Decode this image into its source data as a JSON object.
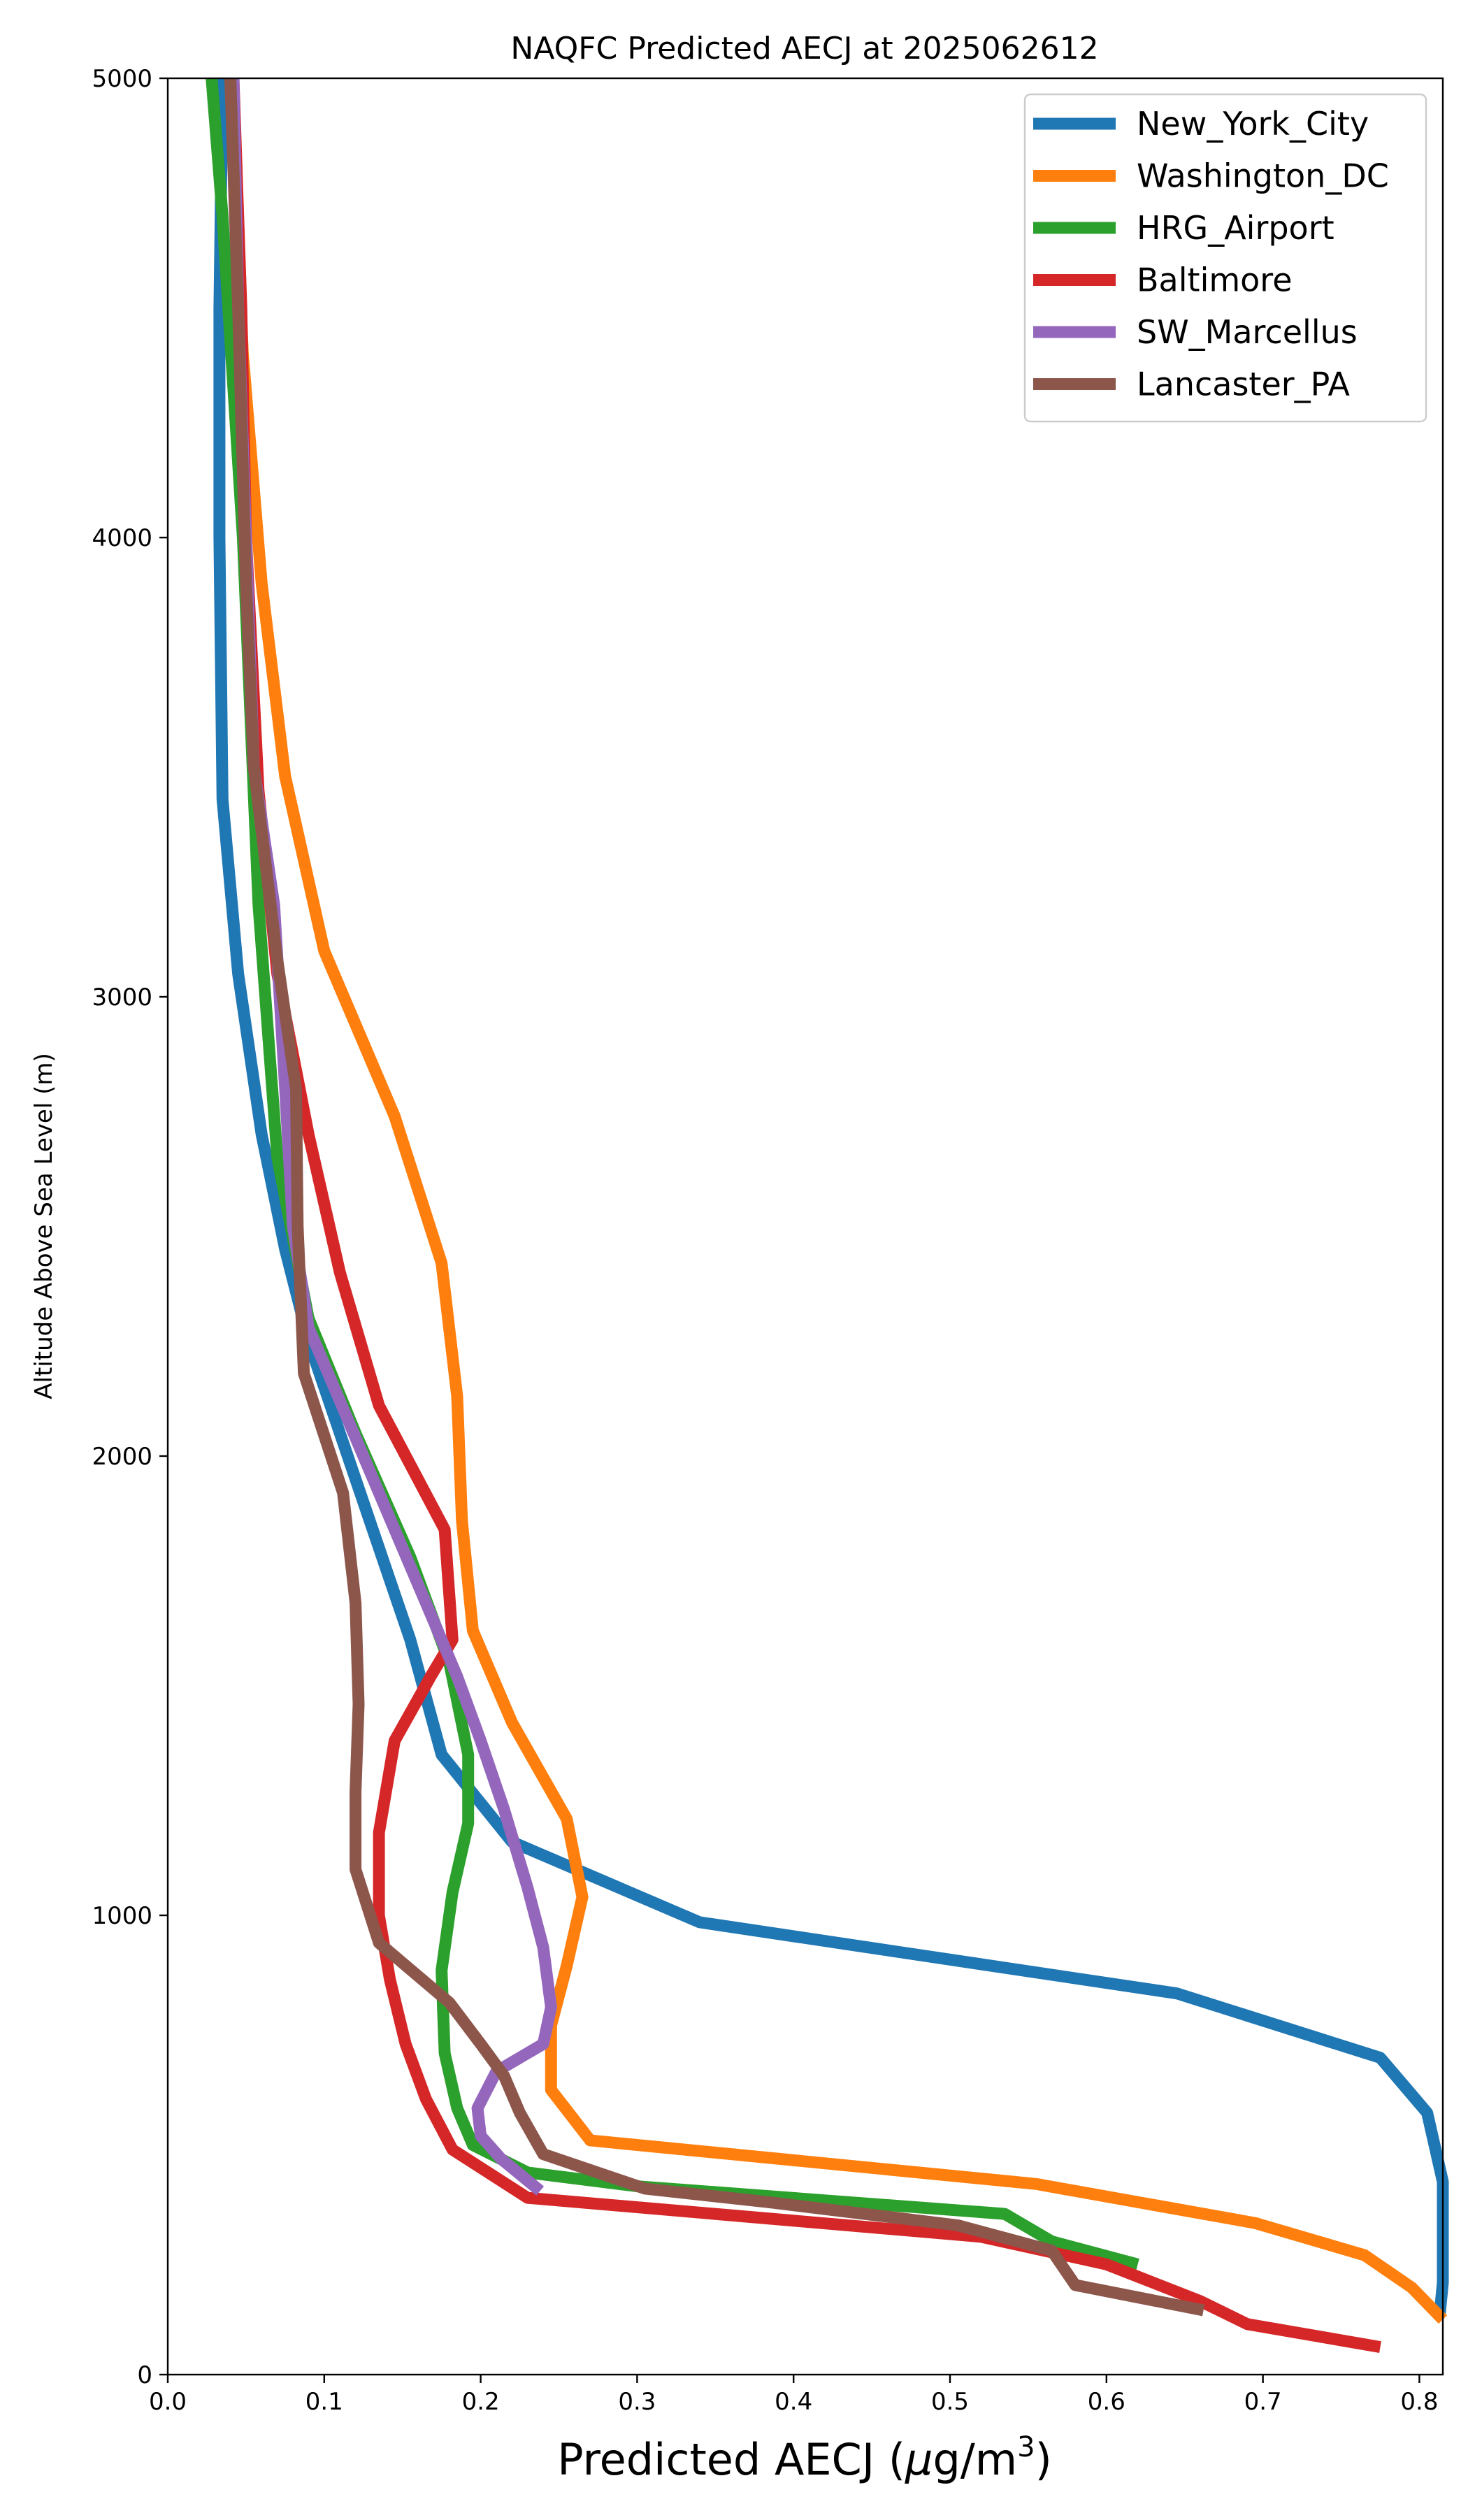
{
  "chart_data": {
    "type": "line",
    "title": "NAQFC Predicted AECJ at 2025062612",
    "xlabel_prefix": "Predicted AECJ (",
    "xlabel_unit_mu": "μ",
    "xlabel_unit_rest": "g/m",
    "xlabel_unit_sup": "3",
    "xlabel_suffix": ")",
    "ylabel": "Altitude Above Sea Level (m)",
    "xlim": [
      0.0,
      0.815
    ],
    "ylim": [
      0,
      5000
    ],
    "xticks": [
      "0.0",
      "0.1",
      "0.2",
      "0.3",
      "0.4",
      "0.5",
      "0.6",
      "0.7",
      "0.8"
    ],
    "xtick_values": [
      0.0,
      0.1,
      0.2,
      0.3,
      0.4,
      0.5,
      0.6,
      0.7,
      0.8
    ],
    "yticks": [
      "0",
      "1000",
      "2000",
      "3000",
      "4000",
      "5000"
    ],
    "ytick_values": [
      0,
      1000,
      2000,
      3000,
      4000,
      5000
    ],
    "grid": false,
    "legend_position": "top-right",
    "series": [
      {
        "name": "New_York_City",
        "color": "#1f77b4",
        "points": [
          [
            0.813,
            130
          ],
          [
            0.815,
            200
          ],
          [
            0.815,
            420
          ],
          [
            0.805,
            570
          ],
          [
            0.775,
            690
          ],
          [
            0.645,
            830
          ],
          [
            0.34,
            985
          ],
          [
            0.22,
            1160
          ],
          [
            0.175,
            1350
          ],
          [
            0.155,
            1600
          ],
          [
            0.135,
            1800
          ],
          [
            0.115,
            2000
          ],
          [
            0.09,
            2250
          ],
          [
            0.075,
            2450
          ],
          [
            0.06,
            2700
          ],
          [
            0.045,
            3050
          ],
          [
            0.035,
            3430
          ],
          [
            0.033,
            4000
          ],
          [
            0.033,
            4500
          ],
          [
            0.035,
            5000
          ]
        ]
      },
      {
        "name": "Washington_DC",
        "color": "#ff7f0e",
        "points": [
          [
            0.815,
            120
          ],
          [
            0.795,
            190
          ],
          [
            0.765,
            260
          ],
          [
            0.695,
            330
          ],
          [
            0.555,
            415
          ],
          [
            0.27,
            510
          ],
          [
            0.245,
            620
          ],
          [
            0.245,
            760
          ],
          [
            0.255,
            890
          ],
          [
            0.265,
            1040
          ],
          [
            0.255,
            1210
          ],
          [
            0.22,
            1420
          ],
          [
            0.195,
            1620
          ],
          [
            0.188,
            1860
          ],
          [
            0.185,
            2130
          ],
          [
            0.175,
            2420
          ],
          [
            0.145,
            2740
          ],
          [
            0.1,
            3100
          ],
          [
            0.075,
            3480
          ],
          [
            0.06,
            3900
          ],
          [
            0.048,
            4400
          ],
          [
            0.04,
            5000
          ]
        ]
      },
      {
        "name": "HRG_Airport",
        "color": "#2ca02c",
        "points": [
          [
            0.62,
            240
          ],
          [
            0.565,
            290
          ],
          [
            0.535,
            350
          ],
          [
            0.3,
            410
          ],
          [
            0.23,
            440
          ],
          [
            0.195,
            500
          ],
          [
            0.185,
            580
          ],
          [
            0.177,
            700
          ],
          [
            0.175,
            880
          ],
          [
            0.182,
            1050
          ],
          [
            0.192,
            1200
          ],
          [
            0.192,
            1350
          ],
          [
            0.18,
            1550
          ],
          [
            0.155,
            1780
          ],
          [
            0.12,
            2050
          ],
          [
            0.09,
            2300
          ],
          [
            0.07,
            2650
          ],
          [
            0.058,
            3200
          ],
          [
            0.048,
            4000
          ],
          [
            0.035,
            4700
          ],
          [
            0.028,
            5000
          ]
        ]
      },
      {
        "name": "Baltimore",
        "color": "#d62728",
        "points": [
          [
            0.775,
            60
          ],
          [
            0.69,
            110
          ],
          [
            0.66,
            160
          ],
          [
            0.6,
            240
          ],
          [
            0.52,
            300
          ],
          [
            0.23,
            385
          ],
          [
            0.182,
            490
          ],
          [
            0.165,
            600
          ],
          [
            0.152,
            720
          ],
          [
            0.142,
            860
          ],
          [
            0.135,
            1000
          ],
          [
            0.135,
            1180
          ],
          [
            0.145,
            1380
          ],
          [
            0.168,
            1520
          ],
          [
            0.182,
            1600
          ],
          [
            0.177,
            1840
          ],
          [
            0.135,
            2110
          ],
          [
            0.11,
            2400
          ],
          [
            0.09,
            2700
          ],
          [
            0.07,
            3050
          ],
          [
            0.058,
            3450
          ],
          [
            0.05,
            4000
          ],
          [
            0.047,
            4500
          ],
          [
            0.042,
            5000
          ]
        ]
      },
      {
        "name": "SW_Marcellus",
        "color": "#9467bd",
        "points": [
          [
            0.238,
            400
          ],
          [
            0.213,
            470
          ],
          [
            0.2,
            520
          ],
          [
            0.198,
            580
          ],
          [
            0.21,
            660
          ],
          [
            0.24,
            720
          ],
          [
            0.245,
            800
          ],
          [
            0.24,
            930
          ],
          [
            0.23,
            1060
          ],
          [
            0.215,
            1230
          ],
          [
            0.2,
            1380
          ],
          [
            0.185,
            1520
          ],
          [
            0.165,
            1680
          ],
          [
            0.14,
            1880
          ],
          [
            0.115,
            2080
          ],
          [
            0.09,
            2280
          ],
          [
            0.08,
            2500
          ],
          [
            0.075,
            2800
          ],
          [
            0.068,
            3200
          ],
          [
            0.055,
            3500
          ],
          [
            0.05,
            4000
          ],
          [
            0.045,
            4500
          ],
          [
            0.042,
            5000
          ]
        ]
      },
      {
        "name": "Lancaster_PA",
        "color": "#8c564b",
        "points": [
          [
            0.662,
            140
          ],
          [
            0.58,
            195
          ],
          [
            0.565,
            270
          ],
          [
            0.505,
            325
          ],
          [
            0.385,
            375
          ],
          [
            0.305,
            405
          ],
          [
            0.24,
            480
          ],
          [
            0.225,
            570
          ],
          [
            0.215,
            650
          ],
          [
            0.2,
            720
          ],
          [
            0.18,
            810
          ],
          [
            0.135,
            940
          ],
          [
            0.12,
            1100
          ],
          [
            0.12,
            1270
          ],
          [
            0.122,
            1460
          ],
          [
            0.12,
            1680
          ],
          [
            0.112,
            1920
          ],
          [
            0.087,
            2180
          ],
          [
            0.083,
            2500
          ],
          [
            0.082,
            2800
          ],
          [
            0.07,
            3080
          ],
          [
            0.055,
            3500
          ],
          [
            0.05,
            3900
          ],
          [
            0.045,
            4500
          ],
          [
            0.04,
            5000
          ]
        ]
      }
    ]
  }
}
